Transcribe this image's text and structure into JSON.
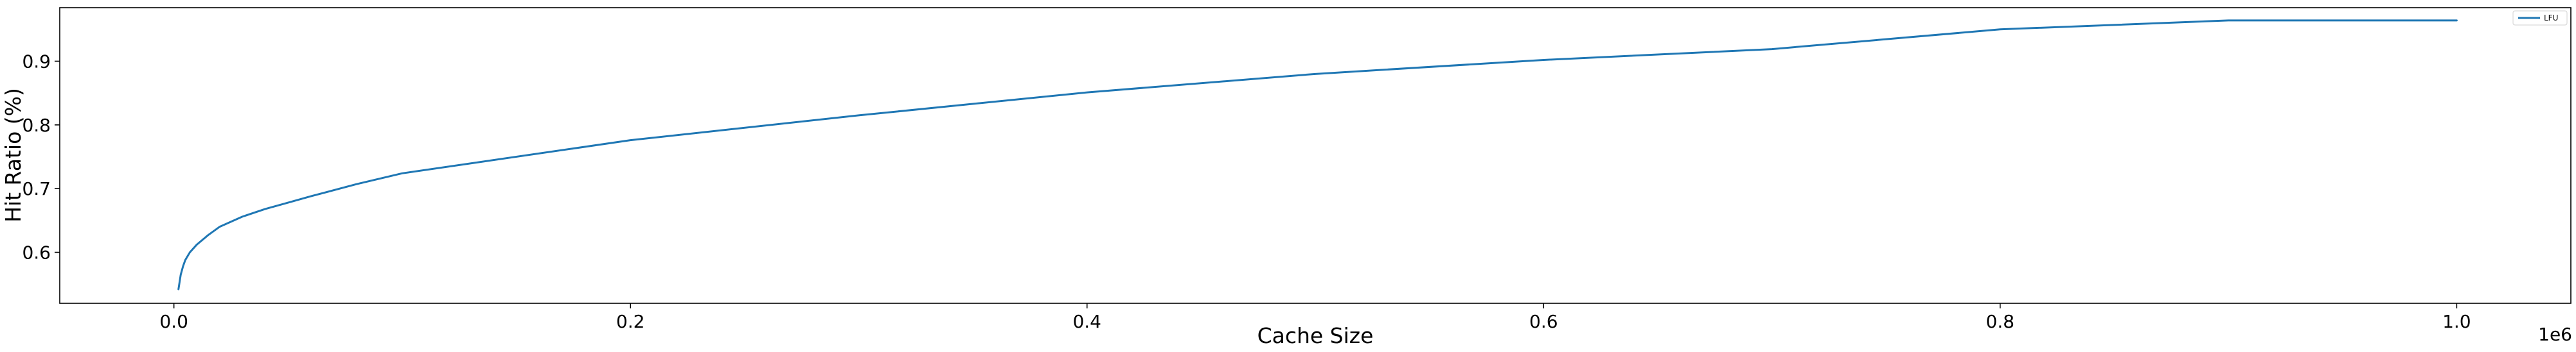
{
  "chart_data": {
    "type": "line",
    "title": "",
    "xlabel": "Cache Size",
    "ylabel": "Hit Ratio (%)",
    "x_offset_label": "1e6",
    "xlim": [
      -0.05,
      1.05
    ],
    "ylim": [
      0.52,
      0.984
    ],
    "grid": false,
    "legend_position": "top-right",
    "x_ticks": [
      {
        "value": 0.0,
        "label": "0.0"
      },
      {
        "value": 0.2,
        "label": "0.2"
      },
      {
        "value": 0.4,
        "label": "0.4"
      },
      {
        "value": 0.6,
        "label": "0.6"
      },
      {
        "value": 0.8,
        "label": "0.8"
      },
      {
        "value": 1.0,
        "label": "1.0"
      }
    ],
    "y_ticks": [
      {
        "value": 0.6,
        "label": "0.6"
      },
      {
        "value": 0.7,
        "label": "0.7"
      },
      {
        "value": 0.8,
        "label": "0.8"
      },
      {
        "value": 0.9,
        "label": "0.9"
      }
    ],
    "series": [
      {
        "name": "LFU",
        "color": "#1f77b4",
        "x": [
          0.002,
          0.003,
          0.004,
          0.005,
          0.007,
          0.01,
          0.015,
          0.02,
          0.03,
          0.04,
          0.05,
          0.06,
          0.08,
          0.1,
          0.2,
          0.3,
          0.4,
          0.5,
          0.6,
          0.7,
          0.8,
          0.9,
          1.0
        ],
        "y": [
          0.542,
          0.565,
          0.578,
          0.588,
          0.6,
          0.612,
          0.627,
          0.64,
          0.656,
          0.668,
          0.678,
          0.688,
          0.707,
          0.724,
          0.776,
          0.815,
          0.851,
          0.88,
          0.902,
          0.919,
          0.95,
          0.964,
          0.964
        ]
      }
    ]
  }
}
